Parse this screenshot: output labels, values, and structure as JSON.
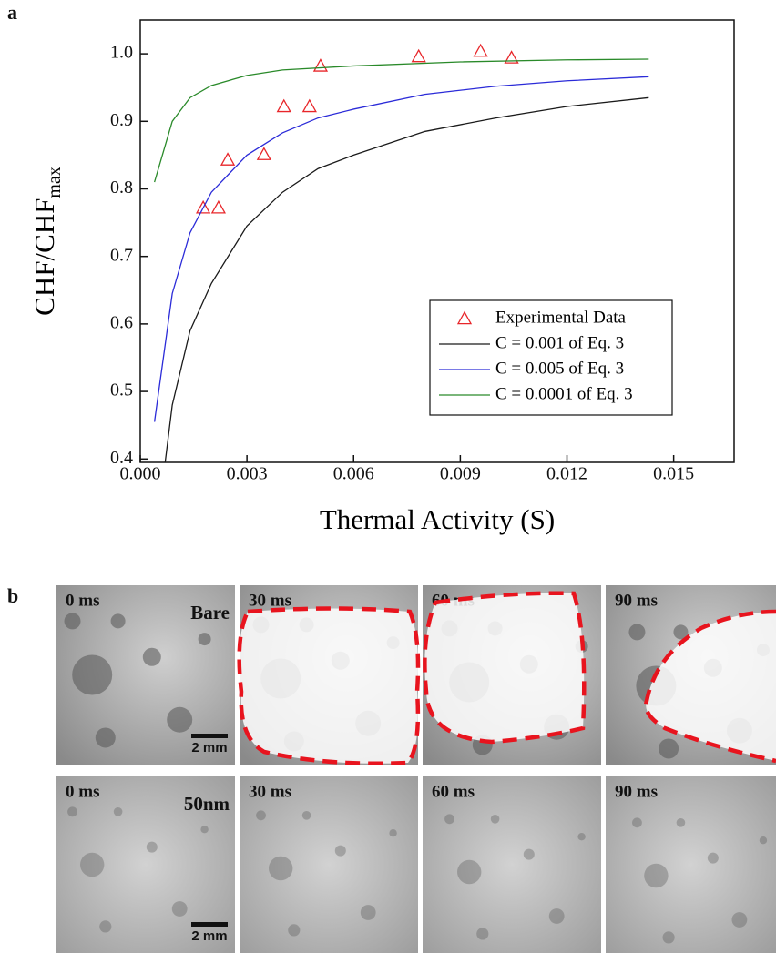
{
  "chart_data": {
    "type": "line",
    "label": "a",
    "x_label": "Thermal Activity (S)",
    "y_label": "CHF/CHF",
    "y_label_subscript": "max",
    "xlim": [
      0,
      0.0167
    ],
    "ylim": [
      0.395,
      1.05
    ],
    "xticks": [
      {
        "value": 0,
        "label": "0.000"
      },
      {
        "value": 0.003,
        "label": "0.003"
      },
      {
        "value": 0.006,
        "label": "0.006"
      },
      {
        "value": 0.009,
        "label": "0.009"
      },
      {
        "value": 0.012,
        "label": "0.012"
      },
      {
        "value": 0.015,
        "label": "0.015"
      }
    ],
    "yticks": [
      0.4,
      0.5,
      0.6,
      0.7,
      0.8,
      0.9,
      {
        "value": 1,
        "label": "1.0"
      }
    ],
    "legend": "lower right",
    "series": [
      {
        "name": "Experimental Data",
        "type": "scatter",
        "color": "#e8262a",
        "x": [
          0.00177,
          0.0022,
          0.00246,
          0.00348,
          0.00404,
          0.00476,
          0.00507,
          0.00783,
          0.00957,
          0.01044
        ],
        "values": [
          0.772,
          0.772,
          0.843,
          0.851,
          0.922,
          0.922,
          0.982,
          0.996,
          1.004,
          0.994
        ]
      },
      {
        "name": "C = 0.001 of Eq. 3",
        "type": "line",
        "color": "#1a1a1a",
        "x": [
          0.0007,
          0.0009,
          0.0014,
          0.002,
          0.003,
          0.004,
          0.005,
          0.006,
          0.008,
          0.01,
          0.012,
          0.0143
        ],
        "values": [
          0.395,
          0.48,
          0.59,
          0.66,
          0.745,
          0.795,
          0.83,
          0.85,
          0.885,
          0.905,
          0.922,
          0.935
        ]
      },
      {
        "name": "C = 0.005 of Eq. 3",
        "type": "line",
        "color": "#2b2bd8",
        "x": [
          0.0004,
          0.0009,
          0.0014,
          0.002,
          0.003,
          0.004,
          0.005,
          0.006,
          0.008,
          0.01,
          0.012,
          0.0143
        ],
        "values": [
          0.455,
          0.645,
          0.735,
          0.795,
          0.85,
          0.883,
          0.905,
          0.918,
          0.94,
          0.952,
          0.96,
          0.966
        ]
      },
      {
        "name": "C = 0.0001 of Eq. 3",
        "type": "line",
        "color": "#2a8a2a",
        "x": [
          0.0004,
          0.0009,
          0.0014,
          0.002,
          0.003,
          0.004,
          0.006,
          0.009,
          0.012,
          0.0143
        ],
        "values": [
          0.81,
          0.9,
          0.935,
          0.953,
          0.968,
          0.976,
          0.982,
          0.988,
          0.991,
          0.992
        ]
      }
    ]
  },
  "panel_b": {
    "label": "b",
    "rows": [
      {
        "sample": "Bare",
        "times": [
          "0 ms",
          "30 ms",
          "60 ms",
          "90 ms"
        ],
        "scale_bar": "2 mm"
      },
      {
        "sample": "50nm",
        "times": [
          "0 ms",
          "30 ms",
          "60 ms",
          "90 ms"
        ],
        "scale_bar": "2 mm"
      }
    ]
  }
}
